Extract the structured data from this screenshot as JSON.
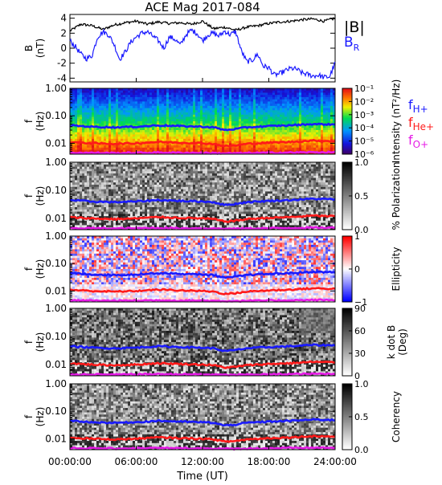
{
  "title": "ACE Mag 2017-084",
  "xaxis": {
    "label": "Time (UT)",
    "ticks": [
      "00:00:00",
      "06:00:00",
      "12:00:00",
      "18:00:00",
      "24:00:00"
    ]
  },
  "colors": {
    "B_total": "#000000",
    "B_R": "#1a1aff",
    "f_H": "#1a1aff",
    "f_He": "#ff1a1a",
    "f_O": "#e61ae6"
  },
  "chart_data": [
    {
      "type": "line",
      "panel": "field",
      "ylabel_line1": "B",
      "ylabel_line2": "(nT)",
      "yticks": [
        "4",
        "2",
        "0",
        "-2",
        "-4"
      ],
      "ylim": [
        -4.5,
        4.5
      ],
      "xlim": [
        0,
        24
      ],
      "series": [
        {
          "name": "|B|",
          "label_main": "|B|",
          "label_sub": "",
          "x": [
            0,
            1,
            2,
            3,
            4,
            5,
            6,
            7,
            8,
            9,
            10,
            11,
            12,
            13,
            14,
            15,
            16,
            17,
            18,
            19,
            20,
            21,
            22,
            23,
            24
          ],
          "values": [
            2.3,
            3.2,
            3.0,
            2.5,
            3.1,
            3.4,
            3.6,
            3.2,
            3.5,
            3.3,
            3.4,
            3.2,
            3.6,
            2.6,
            2.8,
            2.4,
            2.8,
            3.0,
            3.3,
            3.5,
            3.6,
            3.8,
            3.9,
            3.6,
            4.0
          ]
        },
        {
          "name": "B_R",
          "label_main": "B",
          "label_sub": "R",
          "x": [
            0,
            0.5,
            1,
            1.5,
            2,
            2.5,
            3,
            3.5,
            4,
            4.5,
            5,
            5.5,
            6,
            6.5,
            7,
            7.5,
            8,
            8.5,
            9,
            9.5,
            10,
            10.5,
            11,
            11.5,
            12,
            12.5,
            13,
            13.5,
            14,
            14.5,
            15,
            15.5,
            16,
            16.5,
            17,
            17.5,
            18,
            18.5,
            19,
            19.5,
            20,
            20.5,
            21,
            21.5,
            22,
            22.5,
            23,
            23.5,
            24
          ],
          "values": [
            1.0,
            0.2,
            -0.8,
            -1.4,
            -1.0,
            1.5,
            2.2,
            1.8,
            0.5,
            -1.5,
            -0.5,
            0.8,
            1.5,
            2.0,
            2.2,
            1.6,
            1.0,
            0.0,
            1.5,
            1.2,
            0.4,
            1.8,
            2.4,
            2.0,
            1.0,
            1.8,
            2.0,
            1.6,
            2.3,
            1.8,
            2.2,
            -0.3,
            -1.8,
            -1.6,
            -0.8,
            -2.4,
            -2.6,
            -3.6,
            -3.4,
            -3.0,
            -2.7,
            -2.8,
            -3.3,
            -3.5,
            -3.7,
            -3.6,
            -3.9,
            -3.8,
            -2.0
          ]
        }
      ]
    },
    {
      "type": "heatmap",
      "panel": "intensity",
      "ylabel_line1": "f",
      "ylabel_line2": "(Hz)",
      "yscale": "log",
      "ylim": [
        0.004,
        1.0
      ],
      "yticks": [
        "1.00",
        "0.10",
        "0.01"
      ],
      "colorbar_label": "Intensity (nT²/Hz)",
      "colorbar_ticks": [
        "10⁻¹",
        "10⁻²",
        "10⁻³",
        "10⁻⁴",
        "10⁻⁵",
        "10⁻⁶"
      ],
      "colorbar_range": [
        1e-06,
        0.1
      ],
      "colorbar_scale": "log"
    },
    {
      "type": "heatmap",
      "panel": "polarization",
      "ylabel_line1": "f",
      "ylabel_line2": "(Hz)",
      "yscale": "log",
      "ylim": [
        0.004,
        1.0
      ],
      "yticks": [
        "1.00",
        "0.10",
        "0.01"
      ],
      "colorbar_label": "% Polarization",
      "colorbar_ticks": [
        "1.0",
        "0.5",
        "0.0"
      ],
      "colorbar_range": [
        0,
        1
      ]
    },
    {
      "type": "heatmap",
      "panel": "ellipticity",
      "ylabel_line1": "f",
      "ylabel_line2": "(Hz)",
      "yscale": "log",
      "ylim": [
        0.004,
        1.0
      ],
      "yticks": [
        "1.00",
        "0.10",
        "0.01"
      ],
      "colorbar_label": "Ellipticity",
      "colorbar_ticks": [
        "1",
        "0",
        "−1"
      ],
      "colorbar_range": [
        -1,
        1
      ]
    },
    {
      "type": "heatmap",
      "panel": "kdotb",
      "ylabel_line1": "f",
      "ylabel_line2": "(Hz)",
      "yscale": "log",
      "ylim": [
        0.004,
        1.0
      ],
      "yticks": [
        "1.00",
        "0.10",
        "0.01"
      ],
      "colorbar_label_line1": "k dot B",
      "colorbar_label_line2": "(Deg)",
      "colorbar_ticks": [
        "90",
        "60",
        "30",
        "0"
      ],
      "colorbar_range": [
        0,
        90
      ]
    },
    {
      "type": "heatmap",
      "panel": "coherency",
      "ylabel_line1": "f",
      "ylabel_line2": "(Hz)",
      "yscale": "log",
      "ylim": [
        0.004,
        1.0
      ],
      "yticks": [
        "1.00",
        "0.10",
        "0.01"
      ],
      "colorbar_label": "Coherency",
      "colorbar_ticks": [
        "1.0",
        "0.5",
        "0.0"
      ],
      "colorbar_range": [
        0,
        1
      ]
    }
  ],
  "gyrofrequency_legend": [
    {
      "main": "f",
      "sub": "H+",
      "color": "#1a1aff"
    },
    {
      "main": "f",
      "sub": "He+",
      "color": "#ff1a1a"
    },
    {
      "main": "f",
      "sub": "O+",
      "color": "#e61ae6"
    }
  ],
  "gyrofrequency_lines": {
    "x": [
      0,
      2,
      4,
      6,
      8,
      10,
      12,
      13,
      14,
      15,
      16,
      18,
      20,
      22,
      24
    ],
    "f_H": [
      0.045,
      0.04,
      0.038,
      0.04,
      0.045,
      0.042,
      0.04,
      0.038,
      0.03,
      0.033,
      0.038,
      0.042,
      0.045,
      0.05,
      0.048
    ],
    "f_He": [
      0.011,
      0.01,
      0.0095,
      0.01,
      0.0112,
      0.0105,
      0.01,
      0.0095,
      0.0078,
      0.0083,
      0.0095,
      0.0105,
      0.0112,
      0.0125,
      0.012
    ],
    "f_O": [
      0.0045,
      0.0045,
      0.0044,
      0.0045,
      0.0046,
      0.0045,
      0.0045,
      0.0044,
      0.0043,
      0.0043,
      0.0044,
      0.0045,
      0.0046,
      0.0047,
      0.0047
    ]
  }
}
